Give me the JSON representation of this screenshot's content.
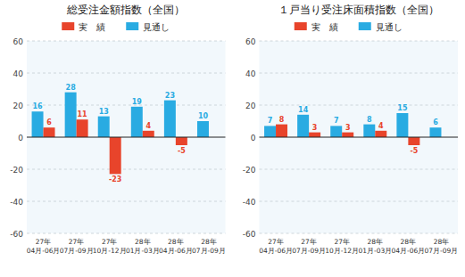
{
  "chart_data": [
    {
      "type": "bar",
      "title": "総受注金額指数（全国）",
      "categories": [
        "27年\n04月-06月",
        "27年\n07月-09月",
        "27年\n10月-12月",
        "28年\n01月-03月",
        "28年\n04月-06月",
        "28年\n07月-09月"
      ],
      "series": [
        {
          "name": "見通し",
          "color": "#29ABE2",
          "values": [
            16,
            28,
            13,
            19,
            23,
            10
          ]
        },
        {
          "name": "実　績",
          "color": "#E8442B",
          "values": [
            6,
            11,
            -23,
            4,
            -5,
            null
          ]
        }
      ],
      "ylim": [
        -60,
        60
      ],
      "yticks": [
        -60,
        -40,
        -20,
        0,
        20,
        40,
        60
      ],
      "grid": true,
      "data_labels": true
    },
    {
      "type": "bar",
      "title": "１戸当り受注床面積指数（全国）",
      "categories": [
        "27年\n04月-06月",
        "27年\n07月-09月",
        "27年\n10月-12月",
        "28年\n01月-03月",
        "28年\n04月-06月",
        "28年\n07月-09月"
      ],
      "series": [
        {
          "name": "見通し",
          "color": "#29ABE2",
          "values": [
            7,
            14,
            7,
            8,
            15,
            6
          ]
        },
        {
          "name": "実　績",
          "color": "#E8442B",
          "values": [
            8,
            3,
            3,
            4,
            -5,
            null
          ]
        }
      ],
      "ylim": [
        -60,
        60
      ],
      "yticks": [
        -60,
        -40,
        -20,
        0,
        20,
        40,
        60
      ],
      "grid": true,
      "data_labels": true
    }
  ]
}
